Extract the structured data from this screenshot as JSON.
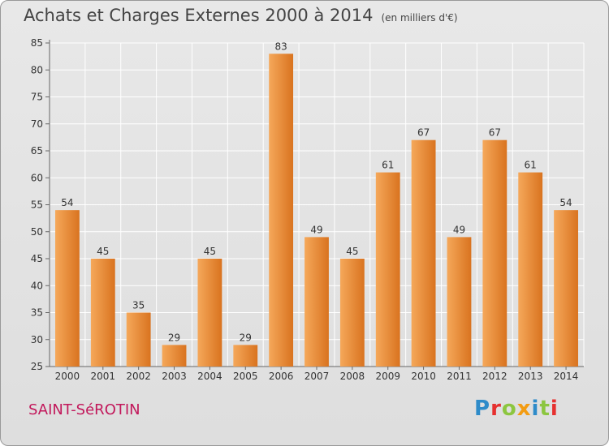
{
  "title": "Achats et Charges Externes 2000 à 2014",
  "unit": "(en milliers d'€)",
  "place_name": "SAINT-SéROTIN",
  "brand": {
    "letters": [
      "P",
      "r",
      "o",
      "x",
      "i",
      "t",
      "i"
    ]
  },
  "colors": {
    "bar_light": "#f5a85a",
    "bar_dark": "#d9731f",
    "grid": "#ffffff",
    "axis_text": "#333333"
  },
  "chart_data": {
    "type": "bar",
    "title": "Achats et Charges Externes 2000 à 2014",
    "xlabel": "",
    "ylabel": "",
    "categories": [
      "2000",
      "2001",
      "2002",
      "2003",
      "2004",
      "2005",
      "2006",
      "2007",
      "2008",
      "2009",
      "2010",
      "2011",
      "2012",
      "2013",
      "2014"
    ],
    "values": [
      54,
      45,
      35,
      29,
      45,
      29,
      83,
      49,
      45,
      61,
      67,
      49,
      67,
      61,
      54
    ],
    "ylim": [
      25,
      85
    ],
    "yticks": [
      25,
      30,
      35,
      40,
      45,
      50,
      55,
      60,
      65,
      70,
      75,
      80,
      85
    ],
    "grid": true,
    "data_labels": true
  }
}
